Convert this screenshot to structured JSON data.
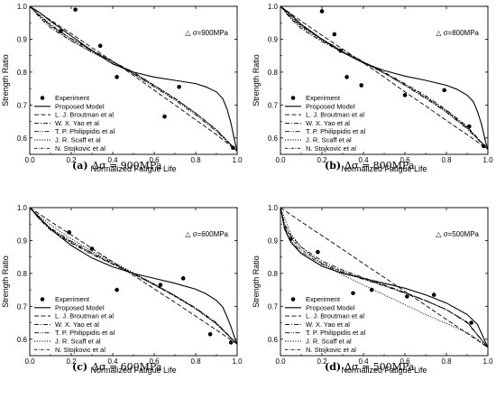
{
  "legend_labels": [
    "Experiment",
    "Proposed Model",
    "L. J. Broutman et al",
    "W. X. Yao et al",
    "T. P. Philippidis et al",
    "J. R. Scaff et al",
    "N. Stojkovic et al"
  ],
  "chart_data": [
    {
      "type": "line",
      "caption_letter": "(a)",
      "caption_text": "Δσ = 900MPa",
      "annotation": "△ σ=900MPa",
      "xlabel": "Normalized Fatigue Life",
      "ylabel": "Strength Ratio",
      "xlim": [
        0,
        1.0
      ],
      "ylim": [
        0.55,
        1.0
      ],
      "xticks": [
        "0.0",
        "0.2",
        "0.4",
        "0.6",
        "0.8",
        "1.0"
      ],
      "yticks": [
        "0.6",
        "0.7",
        "0.8",
        "0.9",
        "1.0"
      ],
      "grid": false,
      "legend_position": "bottom-left",
      "experiment": [
        [
          0.15,
          0.925
        ],
        [
          0.22,
          0.99
        ],
        [
          0.34,
          0.88
        ],
        [
          0.42,
          0.785
        ],
        [
          0.65,
          0.665
        ],
        [
          0.72,
          0.755
        ],
        [
          0.98,
          0.57
        ]
      ],
      "series": [
        {
          "name": "Proposed Model",
          "style": "solid",
          "x": [
            0,
            0.05,
            0.1,
            0.2,
            0.3,
            0.4,
            0.5,
            0.6,
            0.7,
            0.8,
            0.85,
            0.9,
            0.93,
            0.95,
            0.97,
            0.99,
            1.0
          ],
          "y": [
            1.0,
            0.98,
            0.955,
            0.91,
            0.865,
            0.825,
            0.8,
            0.785,
            0.775,
            0.765,
            0.755,
            0.74,
            0.72,
            0.69,
            0.645,
            0.585,
            0.56
          ]
        },
        {
          "name": "L. J. Broutman et al",
          "style": "dash",
          "x": [
            0,
            0.1,
            0.2,
            0.3,
            0.4,
            0.5,
            0.6,
            0.7,
            0.8,
            0.9,
            1.0
          ],
          "y": [
            1.0,
            0.958,
            0.917,
            0.874,
            0.833,
            0.79,
            0.745,
            0.7,
            0.655,
            0.61,
            0.56
          ]
        },
        {
          "name": "W. X. Yao et al",
          "style": "dashdot",
          "x": [
            0,
            0.05,
            0.1,
            0.2,
            0.3,
            0.4,
            0.5,
            0.6,
            0.7,
            0.8,
            0.9,
            1.0
          ],
          "y": [
            1.0,
            0.965,
            0.935,
            0.895,
            0.862,
            0.832,
            0.8,
            0.76,
            0.72,
            0.675,
            0.625,
            0.56
          ]
        },
        {
          "name": "T. P. Philippidis et al",
          "style": "dashdotdot",
          "x": [
            0,
            0.05,
            0.1,
            0.2,
            0.3,
            0.4,
            0.5,
            0.6,
            0.7,
            0.8,
            0.9,
            1.0
          ],
          "y": [
            1.0,
            0.97,
            0.942,
            0.902,
            0.867,
            0.832,
            0.795,
            0.755,
            0.715,
            0.67,
            0.62,
            0.56
          ]
        },
        {
          "name": "J. R. Scaff et al",
          "style": "dot",
          "x": [
            0,
            0.05,
            0.1,
            0.2,
            0.3,
            0.4,
            0.5,
            0.6,
            0.7,
            0.8,
            0.9,
            1.0
          ],
          "y": [
            1.0,
            0.968,
            0.94,
            0.895,
            0.86,
            0.828,
            0.795,
            0.758,
            0.718,
            0.675,
            0.625,
            0.56
          ]
        },
        {
          "name": "N. Stojkovic et al",
          "style": "shortdashdot",
          "x": [
            0,
            0.05,
            0.1,
            0.2,
            0.3,
            0.4,
            0.5,
            0.6,
            0.7,
            0.8,
            0.9,
            1.0
          ],
          "y": [
            1.0,
            0.972,
            0.945,
            0.9,
            0.865,
            0.832,
            0.798,
            0.76,
            0.72,
            0.675,
            0.625,
            0.56
          ]
        }
      ]
    },
    {
      "type": "line",
      "caption_letter": "(b)",
      "caption_text": "Δσ = 800MPa",
      "annotation": "△ σ=800MPa",
      "xlabel": "Normalized Fatigue Life",
      "ylabel": "Strength Ratio",
      "xlim": [
        0,
        1.0
      ],
      "ylim": [
        0.55,
        1.0
      ],
      "xticks": [
        "0.0",
        "0.2",
        "0.4",
        "0.6",
        "0.8",
        "1.0"
      ],
      "yticks": [
        "0.6",
        "0.7",
        "0.8",
        "0.9",
        "1.0"
      ],
      "grid": false,
      "legend_position": "bottom-left",
      "experiment": [
        [
          0.2,
          0.985
        ],
        [
          0.26,
          0.915
        ],
        [
          0.29,
          0.865
        ],
        [
          0.32,
          0.785
        ],
        [
          0.39,
          0.76
        ],
        [
          0.6,
          0.73
        ],
        [
          0.79,
          0.745
        ],
        [
          0.91,
          0.635
        ],
        [
          0.98,
          0.575
        ]
      ],
      "series": [
        {
          "name": "Proposed Model",
          "style": "solid",
          "x": [
            0,
            0.05,
            0.1,
            0.2,
            0.3,
            0.4,
            0.5,
            0.6,
            0.7,
            0.8,
            0.85,
            0.9,
            0.93,
            0.95,
            0.97,
            0.99,
            1.0
          ],
          "y": [
            1.0,
            0.975,
            0.945,
            0.9,
            0.86,
            0.828,
            0.805,
            0.788,
            0.775,
            0.76,
            0.748,
            0.73,
            0.71,
            0.68,
            0.64,
            0.585,
            0.565
          ]
        },
        {
          "name": "L. J. Broutman et al",
          "style": "dash",
          "x": [
            0,
            0.1,
            0.2,
            0.3,
            0.4,
            0.5,
            0.6,
            0.7,
            0.8,
            0.9,
            1.0
          ],
          "y": [
            1.0,
            0.955,
            0.912,
            0.87,
            0.828,
            0.785,
            0.74,
            0.697,
            0.653,
            0.61,
            0.565
          ]
        },
        {
          "name": "W. X. Yao et al",
          "style": "dashdot",
          "x": [
            0,
            0.05,
            0.1,
            0.2,
            0.3,
            0.4,
            0.5,
            0.6,
            0.7,
            0.8,
            0.9,
            1.0
          ],
          "y": [
            1.0,
            0.962,
            0.932,
            0.893,
            0.86,
            0.83,
            0.8,
            0.765,
            0.728,
            0.685,
            0.635,
            0.565
          ]
        },
        {
          "name": "T. P. Philippidis et al",
          "style": "dashdotdot",
          "x": [
            0,
            0.05,
            0.1,
            0.2,
            0.3,
            0.4,
            0.5,
            0.6,
            0.7,
            0.8,
            0.9,
            1.0
          ],
          "y": [
            1.0,
            0.967,
            0.94,
            0.9,
            0.865,
            0.832,
            0.798,
            0.76,
            0.72,
            0.678,
            0.628,
            0.565
          ]
        },
        {
          "name": "J. R. Scaff et al",
          "style": "dot",
          "x": [
            0,
            0.05,
            0.1,
            0.2,
            0.3,
            0.4,
            0.5,
            0.6,
            0.7,
            0.8,
            0.9,
            1.0
          ],
          "y": [
            1.0,
            0.965,
            0.937,
            0.895,
            0.86,
            0.828,
            0.796,
            0.76,
            0.722,
            0.68,
            0.63,
            0.565
          ]
        },
        {
          "name": "N. Stojkovic et al",
          "style": "shortdashdot",
          "x": [
            0,
            0.05,
            0.1,
            0.2,
            0.3,
            0.4,
            0.5,
            0.6,
            0.7,
            0.8,
            0.9,
            1.0
          ],
          "y": [
            1.0,
            0.97,
            0.942,
            0.898,
            0.862,
            0.83,
            0.797,
            0.762,
            0.724,
            0.682,
            0.632,
            0.565
          ]
        }
      ]
    },
    {
      "type": "line",
      "caption_letter": "(c)",
      "caption_text": "Δσ = 600MPa",
      "annotation": "△ σ=600MPa",
      "xlabel": "Normalized Fatigue Life",
      "ylabel": "Strength Ratio",
      "xlim": [
        0,
        1.0
      ],
      "ylim": [
        0.55,
        1.0
      ],
      "xticks": [
        "0.0",
        "0.2",
        "0.4",
        "0.6",
        "0.8",
        "1.0"
      ],
      "yticks": [
        "0.6",
        "0.7",
        "0.8",
        "0.9",
        "1.0"
      ],
      "grid": false,
      "legend_position": "bottom-left",
      "experiment": [
        [
          0.19,
          0.925
        ],
        [
          0.3,
          0.875
        ],
        [
          0.42,
          0.75
        ],
        [
          0.63,
          0.765
        ],
        [
          0.74,
          0.785
        ],
        [
          0.87,
          0.615
        ],
        [
          0.97,
          0.59
        ]
      ],
      "series": [
        {
          "name": "Proposed Model",
          "style": "solid",
          "x": [
            0,
            0.05,
            0.1,
            0.2,
            0.3,
            0.4,
            0.5,
            0.6,
            0.7,
            0.8,
            0.85,
            0.9,
            0.93,
            0.95,
            0.97,
            0.99,
            1.0
          ],
          "y": [
            1.0,
            0.968,
            0.935,
            0.885,
            0.847,
            0.82,
            0.8,
            0.785,
            0.77,
            0.752,
            0.738,
            0.718,
            0.698,
            0.67,
            0.638,
            0.6,
            0.585
          ]
        },
        {
          "name": "L. J. Broutman et al",
          "style": "dash",
          "x": [
            0,
            0.1,
            0.2,
            0.3,
            0.4,
            0.5,
            0.6,
            0.7,
            0.8,
            0.9,
            1.0
          ],
          "y": [
            1.0,
            0.958,
            0.917,
            0.876,
            0.835,
            0.794,
            0.753,
            0.712,
            0.67,
            0.628,
            0.585
          ]
        },
        {
          "name": "W. X. Yao et al",
          "style": "dashdot",
          "x": [
            0,
            0.05,
            0.1,
            0.2,
            0.3,
            0.4,
            0.5,
            0.6,
            0.7,
            0.8,
            0.9,
            1.0
          ],
          "y": [
            1.0,
            0.962,
            0.932,
            0.892,
            0.858,
            0.828,
            0.798,
            0.766,
            0.732,
            0.695,
            0.65,
            0.585
          ]
        },
        {
          "name": "T. P. Philippidis et al",
          "style": "dashdotdot",
          "x": [
            0,
            0.05,
            0.1,
            0.2,
            0.3,
            0.4,
            0.5,
            0.6,
            0.7,
            0.8,
            0.9,
            1.0
          ],
          "y": [
            1.0,
            0.966,
            0.938,
            0.898,
            0.863,
            0.831,
            0.8,
            0.767,
            0.732,
            0.694,
            0.648,
            0.585
          ]
        },
        {
          "name": "J. R. Scaff et al",
          "style": "dot",
          "x": [
            0,
            0.05,
            0.1,
            0.2,
            0.3,
            0.4,
            0.5,
            0.6,
            0.7,
            0.8,
            0.9,
            1.0
          ],
          "y": [
            1.0,
            0.972,
            0.948,
            0.905,
            0.868,
            0.835,
            0.802,
            0.768,
            0.733,
            0.694,
            0.647,
            0.585
          ]
        },
        {
          "name": "N. Stojkovic et al",
          "style": "shortdashdot",
          "x": [
            0,
            0.05,
            0.1,
            0.2,
            0.3,
            0.4,
            0.5,
            0.6,
            0.7,
            0.8,
            0.9,
            1.0
          ],
          "y": [
            1.0,
            0.964,
            0.935,
            0.895,
            0.86,
            0.829,
            0.798,
            0.765,
            0.73,
            0.692,
            0.646,
            0.585
          ]
        }
      ]
    },
    {
      "type": "line",
      "caption_letter": "(d)",
      "caption_text": "Δσ = 500MPa",
      "annotation": "△ σ=500MPa",
      "xlabel": "Normalized Fatigue Life",
      "ylabel": "Strength Ratio",
      "xlim": [
        0,
        1.0
      ],
      "ylim": [
        0.55,
        1.0
      ],
      "xticks": [
        "0.0",
        "0.2",
        "0.4",
        "0.6",
        "0.8",
        "1.0"
      ],
      "yticks": [
        "0.6",
        "0.7",
        "0.8",
        "0.9",
        "1.0"
      ],
      "grid": false,
      "legend_position": "bottom-left",
      "experiment": [
        [
          0.05,
          0.905
        ],
        [
          0.18,
          0.865
        ],
        [
          0.35,
          0.74
        ],
        [
          0.44,
          0.75
        ],
        [
          0.61,
          0.73
        ],
        [
          0.74,
          0.735
        ],
        [
          0.92,
          0.65
        ]
      ],
      "series": [
        {
          "name": "Proposed Model",
          "style": "solid",
          "x": [
            0,
            0.02,
            0.05,
            0.1,
            0.2,
            0.3,
            0.4,
            0.5,
            0.6,
            0.7,
            0.8,
            0.9,
            0.95,
            1.0
          ],
          "y": [
            1.0,
            0.935,
            0.895,
            0.86,
            0.822,
            0.8,
            0.785,
            0.77,
            0.755,
            0.735,
            0.71,
            0.675,
            0.645,
            0.575
          ]
        },
        {
          "name": "L. J. Broutman et al",
          "style": "dash",
          "x": [
            0,
            0.1,
            0.2,
            0.3,
            0.4,
            0.5,
            0.6,
            0.7,
            0.8,
            0.9,
            1.0
          ],
          "y": [
            1.0,
            0.957,
            0.915,
            0.873,
            0.83,
            0.788,
            0.745,
            0.703,
            0.66,
            0.618,
            0.575
          ]
        },
        {
          "name": "W. X. Yao et al",
          "style": "dashdot",
          "x": [
            0,
            0.02,
            0.05,
            0.1,
            0.2,
            0.3,
            0.4,
            0.5,
            0.6,
            0.7,
            0.8,
            0.9,
            1.0
          ],
          "y": [
            1.0,
            0.95,
            0.915,
            0.88,
            0.838,
            0.81,
            0.787,
            0.765,
            0.742,
            0.718,
            0.69,
            0.65,
            0.575
          ]
        },
        {
          "name": "T. P. Philippidis et al",
          "style": "dashdotdot",
          "x": [
            0,
            0.02,
            0.05,
            0.1,
            0.2,
            0.3,
            0.4,
            0.5,
            0.6,
            0.7,
            0.8,
            0.9,
            1.0
          ],
          "y": [
            1.0,
            0.94,
            0.9,
            0.865,
            0.828,
            0.803,
            0.782,
            0.762,
            0.74,
            0.717,
            0.69,
            0.652,
            0.575
          ]
        },
        {
          "name": "J. R. Scaff et al",
          "style": "dot",
          "x": [
            0,
            0.05,
            0.1,
            0.2,
            0.3,
            0.4,
            0.5,
            0.6,
            0.7,
            0.8,
            0.9,
            0.95,
            1.0
          ],
          "y": [
            1.0,
            0.92,
            0.88,
            0.83,
            0.795,
            0.765,
            0.735,
            0.705,
            0.675,
            0.648,
            0.62,
            0.6,
            0.575
          ]
        },
        {
          "name": "N. Stojkovic et al",
          "style": "shortdashdot",
          "x": [
            0,
            0.02,
            0.05,
            0.1,
            0.2,
            0.3,
            0.4,
            0.5,
            0.6,
            0.7,
            0.8,
            0.9,
            1.0
          ],
          "y": [
            1.0,
            0.945,
            0.908,
            0.872,
            0.832,
            0.806,
            0.784,
            0.763,
            0.741,
            0.717,
            0.69,
            0.652,
            0.575
          ]
        }
      ]
    }
  ]
}
